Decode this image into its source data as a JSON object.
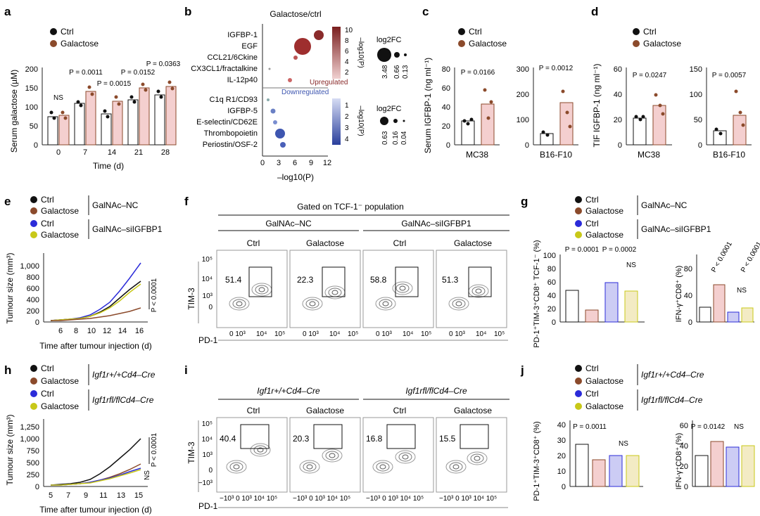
{
  "panel_labels": [
    "a",
    "b",
    "c",
    "d",
    "e",
    "f",
    "g",
    "h",
    "i",
    "j"
  ],
  "legend": {
    "ctrl": "Ctrl",
    "galactose": "Galactose",
    "galnac_nc": "GalNAc–NC",
    "galnac_si": "GalNAc–siIGFBP1",
    "igf_wt": "Igf1r+/+Cd4–Cre",
    "igf_fl": "Igf1rfl/flCd4–Cre"
  },
  "colors": {
    "ctrl": "#111111",
    "galactose": "#8B4A2B",
    "si_ctrl": "#2B2BD9",
    "si_gal": "#C8C818",
    "bar_fill_gal": "#F4CFCF",
    "bar_fill_si": "#CCCCF4",
    "bar_fill_sigal": "#F3EBC4",
    "ctrl_line": "#111111"
  },
  "a": {
    "ylabel": "Serum galactose (µM)",
    "xlabel": "Time (d)",
    "ticks_y": [
      "0",
      "50",
      "100",
      "150",
      "200"
    ],
    "ticks_x": [
      "0",
      "7",
      "14",
      "21",
      "28"
    ],
    "pvals": [
      "NS",
      "P = 0.0011",
      "P = 0.0015",
      "P = 0.0152",
      "P = 0.0363"
    ]
  },
  "b": {
    "title": "Galactose/ctrl",
    "up_label": "Upregulated",
    "down_label": "Downregulated",
    "xlabel": "–log10(P)",
    "xticks": [
      "0",
      "3",
      "6",
      "9",
      "12"
    ],
    "up_items": [
      "IGFBP-1",
      "EGF",
      "CCL21/6Ckine",
      "CX3CL1/fractalkine",
      "IL-12p40"
    ],
    "down_items": [
      "C1q R1/CD93",
      "IGFBP-5",
      "E-selectin/CD62E",
      "Thrombopoietin",
      "Periostin/OSF-2"
    ],
    "cbar_up": [
      "10",
      "8",
      "6",
      "4",
      "2"
    ],
    "cbar_down": [
      "1",
      "2",
      "3",
      "4"
    ],
    "cbar_title": "–log10(P)",
    "fc_title": "log2FC",
    "fc_up": [
      "3.48",
      "0.66",
      "0.13"
    ],
    "fc_down": [
      "0.63",
      "0.16",
      "0.04"
    ]
  },
  "c": {
    "ylabel": "Serum IGFBP-1 (ng ml⁻¹)",
    "mc38": "MC38",
    "b16": "B16-F10",
    "p1": "P = 0.0166",
    "p2": "P = 0.0012",
    "yt1": [
      "0",
      "20",
      "40",
      "60",
      "80"
    ],
    "yt2": [
      "0",
      "50",
      "100",
      "150",
      "200",
      "250",
      "300"
    ]
  },
  "d": {
    "ylabel": "TIF IGFBP-1 (ng ml⁻¹)",
    "mc38": "MC38",
    "b16": "B16-F10",
    "p1": "P = 0.0247",
    "p2": "P = 0.0057",
    "yt1": [
      "0",
      "20",
      "40",
      "60"
    ],
    "yt2": [
      "0",
      "50",
      "100",
      "150"
    ]
  },
  "e": {
    "ylabel": "Tumour size (mm³)",
    "xlabel": "Time after tumour injection (d)",
    "yticks": [
      "0",
      "200",
      "400",
      "600",
      "800",
      "1,000"
    ],
    "xticks": [
      "6",
      "8",
      "10",
      "12",
      "14",
      "16"
    ],
    "p": "P < 0.0001"
  },
  "f": {
    "gate": "Gated on TCF-1⁻ population",
    "group1": "GalNAc–NC",
    "group2": "GalNAc–siIGFBP1",
    "cols": [
      "Ctrl",
      "Galactose",
      "Ctrl",
      "Galactose"
    ],
    "values": [
      "51.4",
      "22.3",
      "58.8",
      "51.3"
    ],
    "yaxis": "TIM-3",
    "xaxis": "PD-1"
  },
  "g": {
    "ylabel1": "PD-1⁺TIM-3⁺CD8⁺ TCF-1⁻ (%)",
    "ylabel2": "IFN-γ⁺CD8⁺ (%)",
    "p1": "P = 0.0001",
    "p2": "P = 0.0002",
    "p3": "P < 0.0001",
    "p4": "P < 0.0001",
    "ns": "NS",
    "yticks": [
      "0",
      "20",
      "40",
      "60",
      "80",
      "100"
    ]
  },
  "h": {
    "ylabel": "Tumour size (mm³)",
    "xlabel": "Time after tumour injection (d)",
    "yticks": [
      "0",
      "250",
      "500",
      "750",
      "1,000",
      "1,250"
    ],
    "xticks": [
      "5",
      "7",
      "9",
      "11",
      "13",
      "15"
    ],
    "p": "P < 0.0001",
    "ns": "NS"
  },
  "i": {
    "group1": "Igf1r+/+Cd4–Cre",
    "group2": "Igf1rfl/flCd4–Cre",
    "cols": [
      "Ctrl",
      "Galactose",
      "Ctrl",
      "Galactose"
    ],
    "values": [
      "40.4",
      "20.3",
      "16.8",
      "15.5"
    ],
    "yaxis": "TIM-3",
    "xaxis": "PD-1"
  },
  "j": {
    "ylabel1": "PD-1⁺TIM-3⁺CD8⁺ (%)",
    "ylabel2": "IFN-γ⁺CD8⁺ (%)",
    "p1": "P = 0.0011",
    "p2": "P = 0.0142",
    "ns": "NS",
    "yt1": [
      "0",
      "10",
      "20",
      "30",
      "40"
    ],
    "yt2": [
      "0",
      "20",
      "40",
      "60"
    ]
  }
}
